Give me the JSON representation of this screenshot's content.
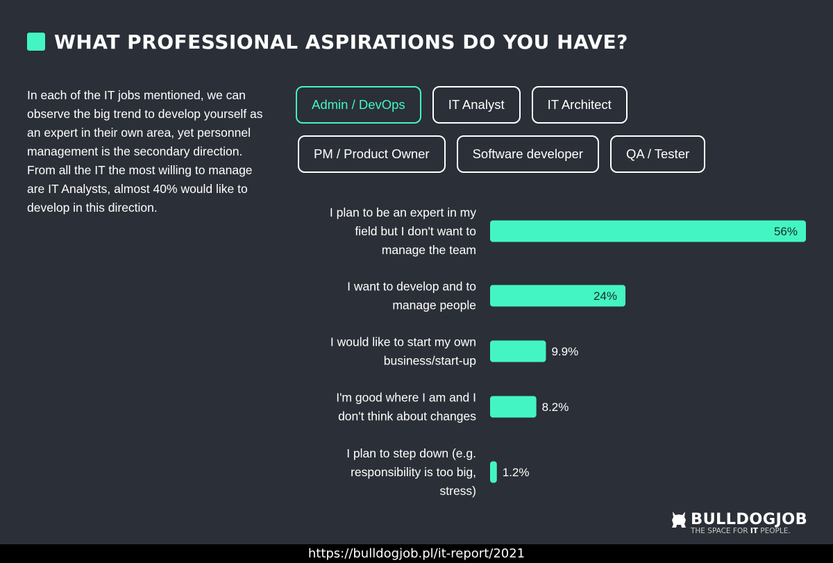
{
  "header": {
    "title": "WHAT PROFESSIONAL ASPIRATIONS DO YOU HAVE?"
  },
  "intro": {
    "text": "In each of the IT jobs mentioned, we can observe the big trend to develop yourself as an expert in their own area, yet personnel management is the secondary direction. From all the IT the most willing to manage are IT Analysts, almost 40% would like to develop in this direction."
  },
  "tabs": [
    {
      "label": "Admin / DevOps",
      "active": true
    },
    {
      "label": "IT Analyst",
      "active": false
    },
    {
      "label": "IT Architect",
      "active": false
    },
    {
      "label": "PM / Product Owner",
      "active": false
    },
    {
      "label": "Software developer",
      "active": false
    },
    {
      "label": "QA / Tester",
      "active": false
    }
  ],
  "colors": {
    "background": "#2b2f37",
    "accent": "#43f5c2",
    "footer_bg": "#000000"
  },
  "chart_data": {
    "type": "bar",
    "orientation": "horizontal",
    "categories": [
      [
        "I plan to be an expert in my",
        "field but I don't want to",
        "manage the team"
      ],
      [
        "I want to develop and to",
        "manage people"
      ],
      [
        "I would like to start my own",
        "business/start-up"
      ],
      [
        "I'm good where I am and I",
        "don't think about changes"
      ],
      [
        "I plan to step down (e.g.",
        "responsibility is too big,",
        "stress)"
      ]
    ],
    "values": [
      56,
      24,
      9.9,
      8.2,
      1.2
    ],
    "value_labels": [
      "56%",
      "24%",
      "9.9%",
      "8.2%",
      "1.2%"
    ],
    "unit": "%",
    "xlim": [
      0,
      56
    ],
    "grid": false,
    "legend": "none"
  },
  "logo": {
    "name": "BULLDOGJOB",
    "tagline_pre": "THE SPACE FOR ",
    "tagline_em": "IT",
    "tagline_post": " PEOPLE."
  },
  "footer": {
    "url": "https://bulldogjob.pl/it-report/2021"
  }
}
